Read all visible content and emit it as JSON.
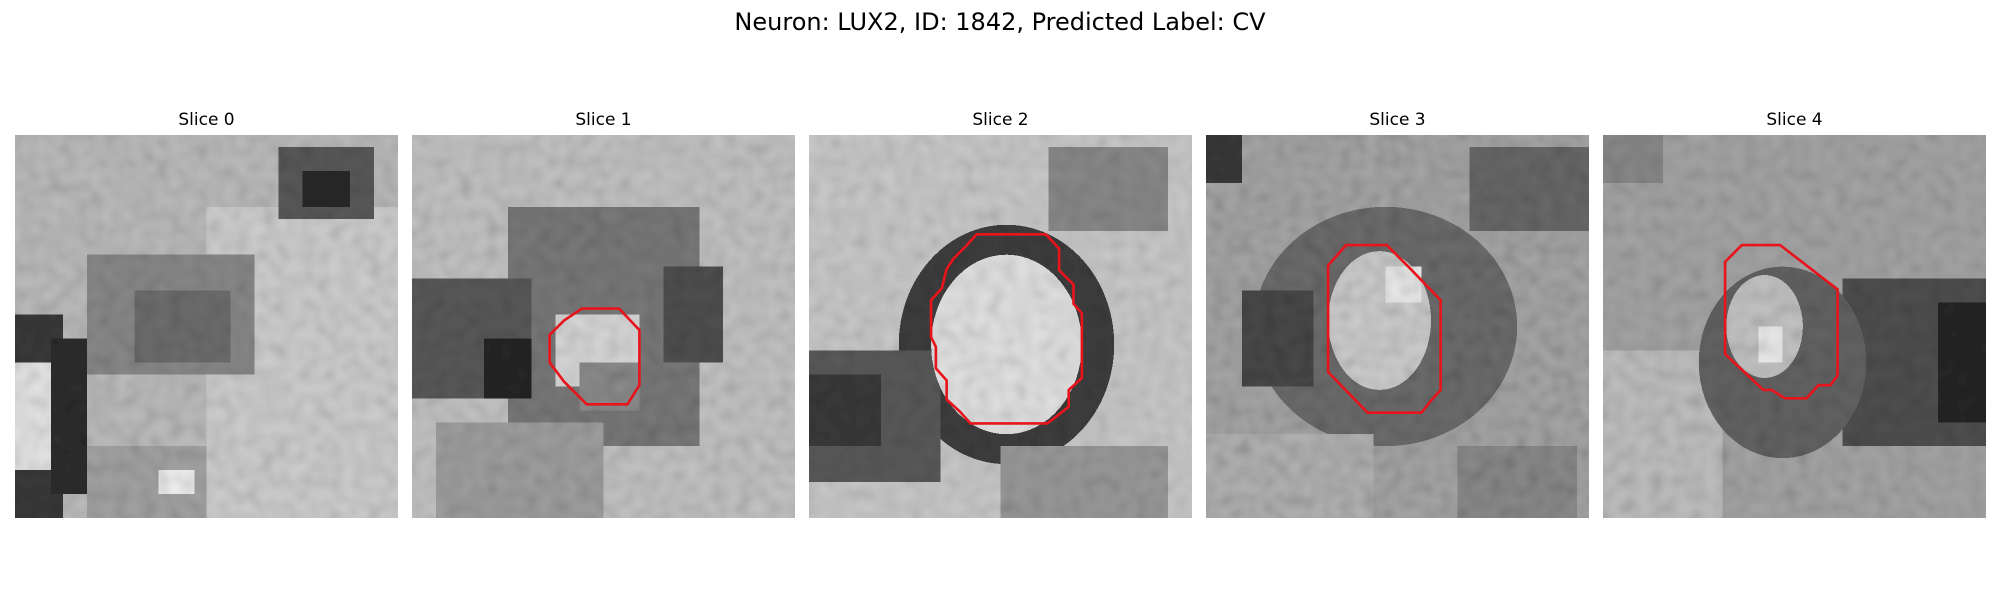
{
  "figure": {
    "title": "Neuron: LUX2, ID: 1842, Predicted Label: CV"
  },
  "contour_color": "#e8141c",
  "panels": [
    {
      "title": "Slice 0",
      "has_contour": false
    },
    {
      "title": "Slice 1",
      "has_contour": true
    },
    {
      "title": "Slice 2",
      "has_contour": true
    },
    {
      "title": "Slice 3",
      "has_contour": true
    },
    {
      "title": "Slice 4",
      "has_contour": true
    }
  ]
}
